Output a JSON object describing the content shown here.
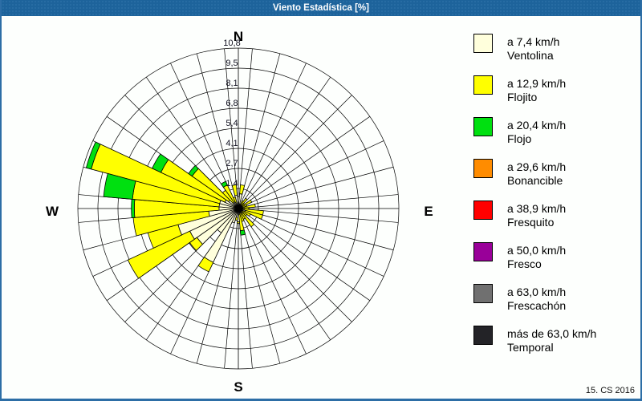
{
  "window": {
    "title": "Viento Estadística [%]",
    "footer_credit": "15. CS 2016"
  },
  "legend": {
    "items": [
      {
        "speed": "a 7,4 km/h",
        "name": "Ventolina",
        "color": "#FFFFDC"
      },
      {
        "speed": "a 12,9 km/h",
        "name": "Flojito",
        "color": "#FFFF00"
      },
      {
        "speed": "a 20,4 km/h",
        "name": "Flojo",
        "color": "#00E010"
      },
      {
        "speed": "a 29,6 km/h",
        "name": "Bonancible",
        "color": "#FF8C00"
      },
      {
        "speed": "a 38,9 km/h",
        "name": "Fresquito",
        "color": "#FF0000"
      },
      {
        "speed": "a 50,0 km/h",
        "name": "Fresco",
        "color": "#990099"
      },
      {
        "speed": "a 63,0 km/h",
        "name": "Frescachón",
        "color": "#707070"
      },
      {
        "speed": "más de 63,0 km/h",
        "name": "Temporal",
        "color": "#232327"
      }
    ]
  },
  "chart_data": {
    "type": "bar",
    "variant": "wind-rose-polar",
    "title": "Viento Estadística [%]",
    "units": "%",
    "rmax": 10.8,
    "ring_step": 1.35,
    "rings": 8,
    "grid": true,
    "legend_position": "right",
    "radial_ticks": [
      "1,4",
      "2,7",
      "4,1",
      "5,4",
      "6,8",
      "8,1",
      "9,5",
      "10,8"
    ],
    "compass": {
      "n": "N",
      "e": "E",
      "s": "S",
      "w": "W"
    },
    "sector_width_deg": 10,
    "directions_deg": [
      0,
      10,
      20,
      30,
      40,
      50,
      60,
      70,
      80,
      90,
      100,
      110,
      120,
      130,
      140,
      150,
      160,
      170,
      180,
      190,
      200,
      210,
      220,
      230,
      240,
      250,
      260,
      270,
      280,
      290,
      300,
      310,
      320,
      330,
      340,
      350
    ],
    "series": [
      {
        "name": "Ventolina",
        "speed": "a 7,4 km/h",
        "color": "#FFFFDC",
        "values": [
          0.8,
          1.0,
          0.3,
          0.3,
          0.3,
          0.2,
          0.3,
          0.2,
          0.4,
          0.3,
          0.4,
          0.5,
          0.3,
          0.2,
          0.4,
          0.3,
          0.3,
          0.4,
          0.9,
          0.6,
          1.0,
          4.0,
          2.0,
          3.4,
          3.6,
          4.2,
          2.0,
          1.3,
          1.3,
          1.3,
          1.0,
          0.8,
          0.5,
          0.5,
          0.4,
          0.9
        ]
      },
      {
        "name": "Flojito",
        "speed": "a 12,9 km/h",
        "color": "#FFFF00",
        "values": [
          0,
          0.6,
          0,
          0.3,
          0.55,
          0.3,
          0.7,
          0.4,
          0.75,
          0.4,
          1.3,
          1.2,
          0.6,
          0.5,
          1.1,
          0.5,
          0.6,
          1.1,
          0.1,
          0.2,
          0,
          0.7,
          0,
          0.6,
          4.6,
          2.1,
          5.1,
          5.7,
          5.85,
          8.95,
          4.75,
          3.0,
          1.0,
          1.25,
          0.4,
          0.7
        ]
      },
      {
        "name": "Flojo",
        "speed": "a 20,4 km/h",
        "color": "#00E010",
        "values": [
          0,
          0,
          0,
          0,
          0,
          0,
          0,
          0,
          0,
          0,
          0,
          0,
          0,
          0,
          0,
          0,
          0,
          0.3,
          0,
          0,
          0,
          0,
          0,
          0,
          0,
          0,
          0,
          0.2,
          1.95,
          0.35,
          0.65,
          0.3,
          0,
          0.27,
          0,
          0
        ]
      },
      {
        "name": "Bonancible",
        "speed": "a 29,6 km/h",
        "color": "#FF8C00",
        "values": [
          0,
          0,
          0,
          0,
          0,
          0,
          0,
          0,
          0,
          0,
          0,
          0,
          0,
          0,
          0,
          0,
          0,
          0,
          0,
          0,
          0,
          0,
          0,
          0,
          0,
          0,
          0,
          0,
          0,
          0,
          0,
          0,
          0,
          0,
          0,
          0
        ]
      },
      {
        "name": "Fresquito",
        "speed": "a 38,9 km/h",
        "color": "#FF0000",
        "values": [
          0,
          0,
          0,
          0,
          0,
          0,
          0,
          0,
          0,
          0,
          0,
          0,
          0,
          0,
          0,
          0,
          0,
          0,
          0,
          0,
          0,
          0,
          0,
          0,
          0,
          0,
          0,
          0,
          0,
          0,
          0,
          0,
          0,
          0,
          0,
          0
        ]
      },
      {
        "name": "Fresco",
        "speed": "a 50,0 km/h",
        "color": "#990099",
        "values": [
          0,
          0,
          0,
          0,
          0,
          0,
          0,
          0,
          0,
          0,
          0,
          0,
          0,
          0,
          0,
          0,
          0,
          0,
          0,
          0,
          0,
          0,
          0,
          0,
          0,
          0,
          0,
          0,
          0,
          0,
          0,
          0,
          0,
          0,
          0,
          0
        ]
      },
      {
        "name": "Frescachón",
        "speed": "a 63,0 km/h",
        "color": "#707070",
        "values": [
          0,
          0,
          0,
          0,
          0,
          0,
          0,
          0,
          0,
          0,
          0,
          0,
          0,
          0,
          0,
          0,
          0,
          0,
          0,
          0,
          0,
          0,
          0,
          0,
          0,
          0,
          0,
          0,
          0,
          0,
          0,
          0,
          0,
          0,
          0,
          0
        ]
      },
      {
        "name": "Temporal",
        "speed": "más de 63,0 km/h",
        "color": "#232327",
        "values": [
          0,
          0,
          0,
          0,
          0,
          0,
          0,
          0,
          0,
          0,
          0,
          0,
          0,
          0,
          0,
          0,
          0,
          0,
          0,
          0,
          0,
          0,
          0,
          0,
          0,
          0,
          0,
          0,
          0,
          0,
          0,
          0,
          0,
          0,
          0,
          0
        ]
      }
    ]
  }
}
